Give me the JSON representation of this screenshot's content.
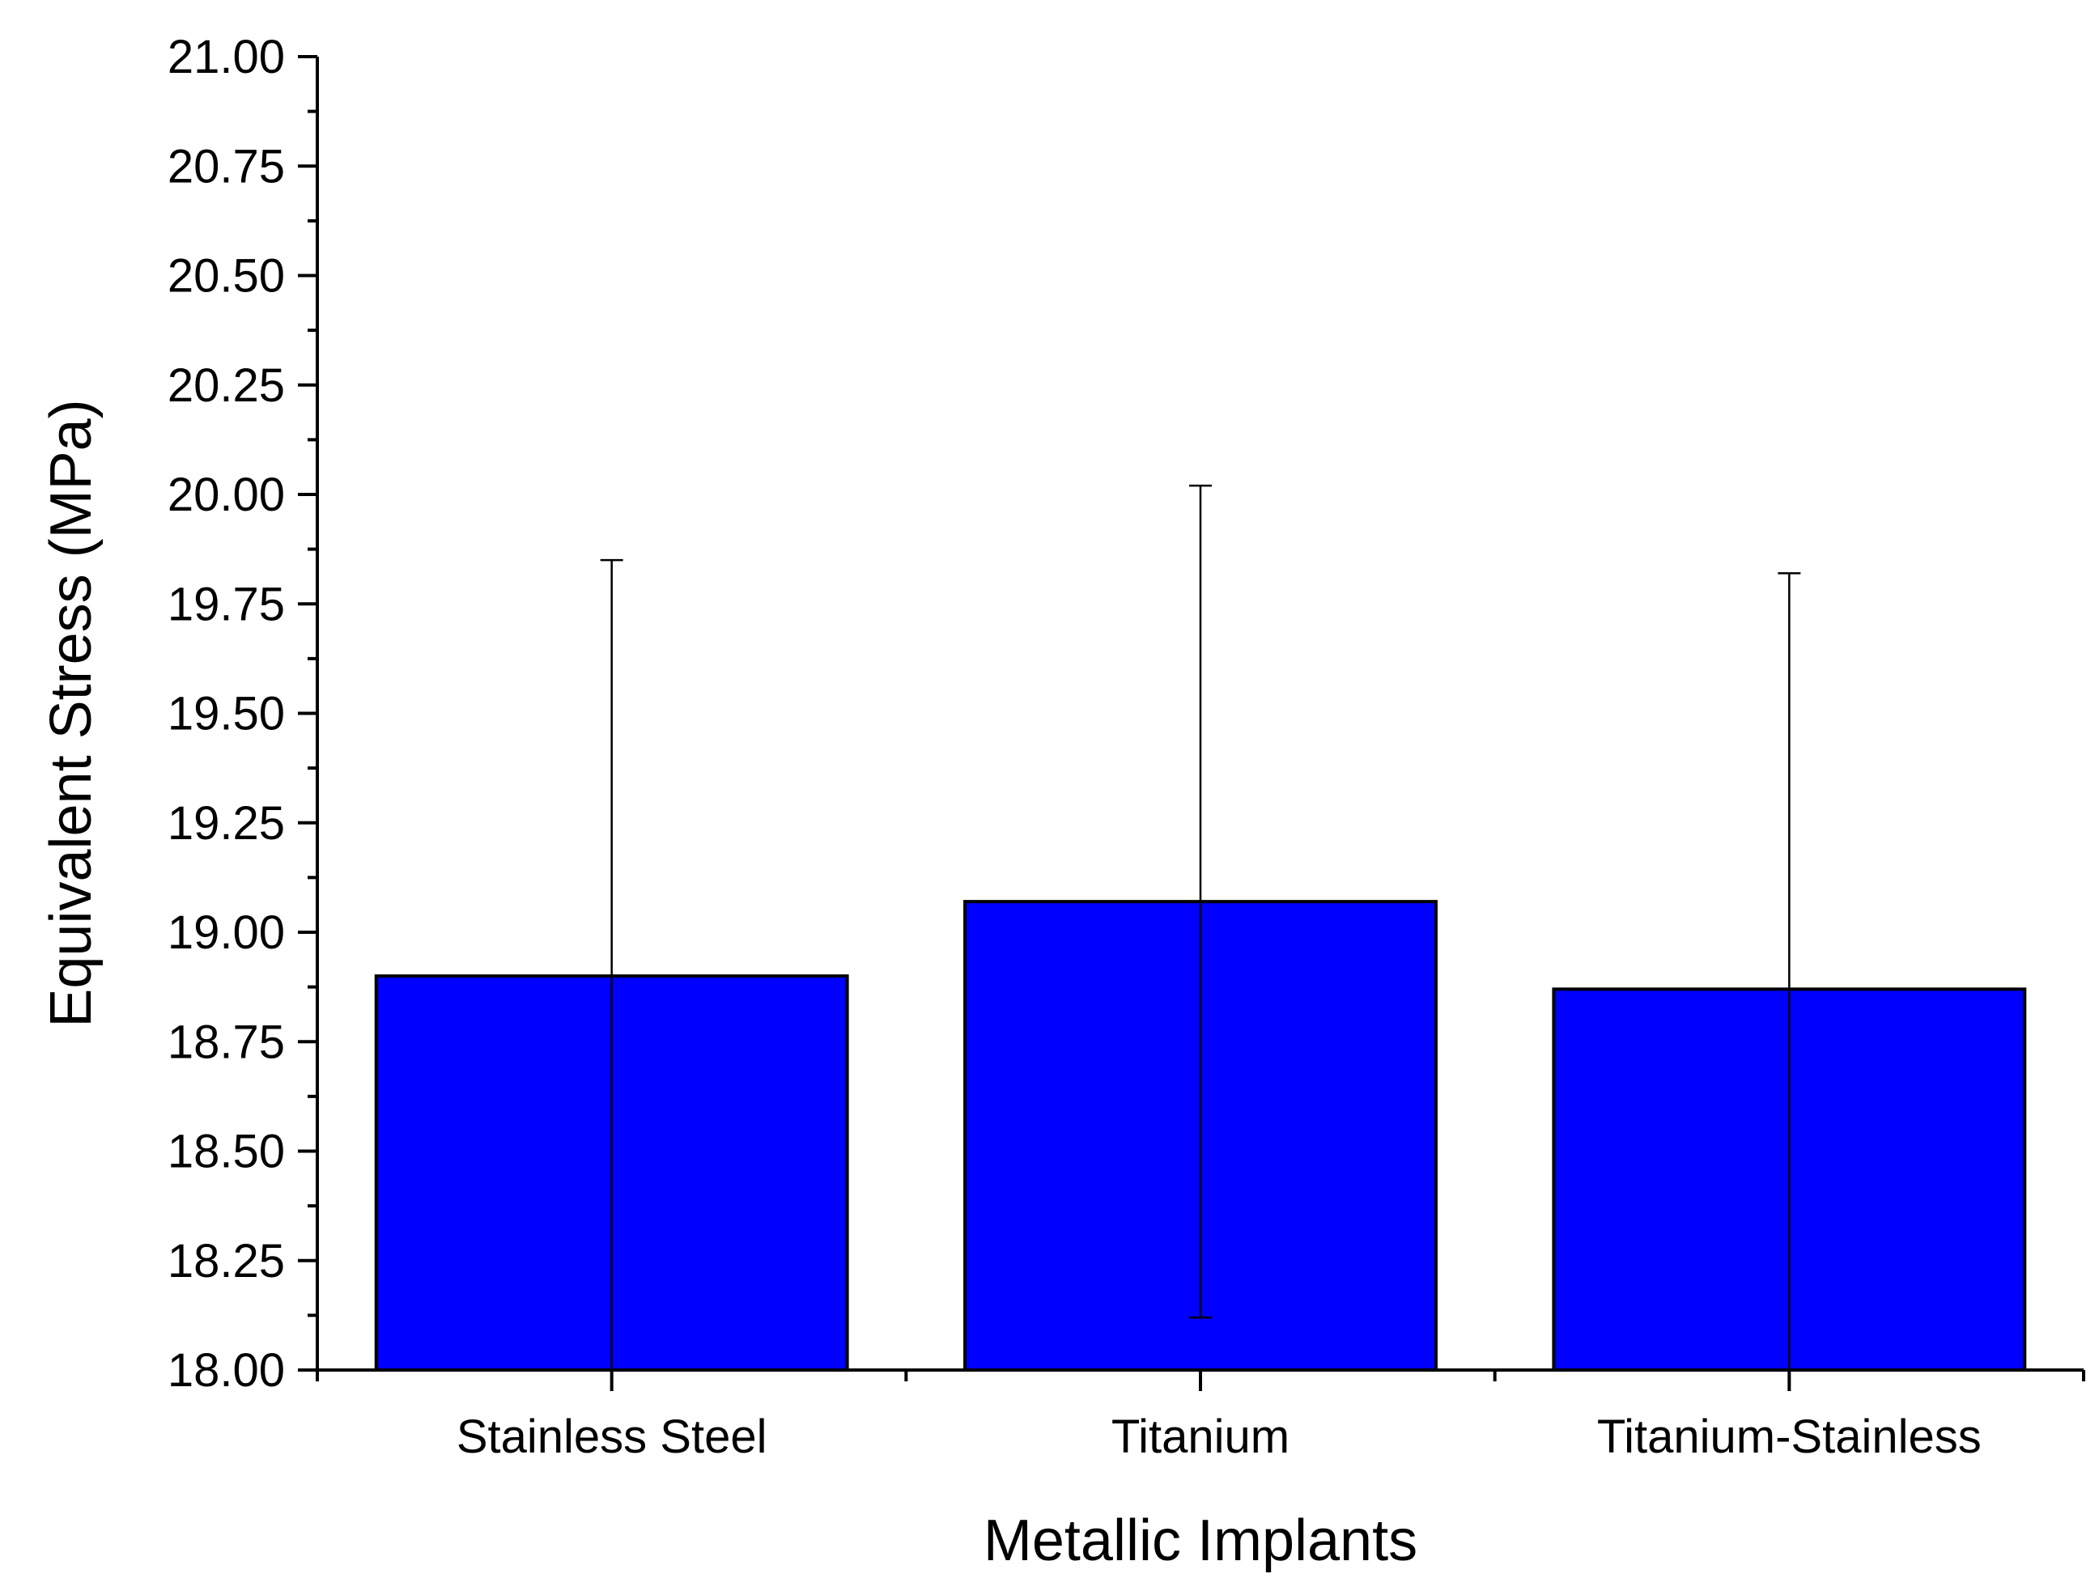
{
  "chart_data": {
    "type": "bar",
    "title": "",
    "xlabel": "Metallic Implants",
    "ylabel": "Equivalent Stress (MPa)",
    "categories": [
      "Stainless Steel",
      "Titanium",
      "Titanium-Stainless"
    ],
    "values": [
      18.9,
      19.07,
      18.87
    ],
    "error_plus": [
      0.95,
      0.95,
      0.95
    ],
    "error_minus": [
      0.95,
      0.95,
      0.95
    ],
    "ylim": [
      18.0,
      21.0
    ],
    "yticks": [
      "18.00",
      "18.25",
      "18.50",
      "18.75",
      "19.00",
      "19.25",
      "19.50",
      "19.75",
      "20.00",
      "20.25",
      "20.50",
      "20.75",
      "21.00"
    ],
    "grid": false,
    "legend": "none",
    "bar_color": "#0000FF",
    "edge_color": "#000000"
  }
}
